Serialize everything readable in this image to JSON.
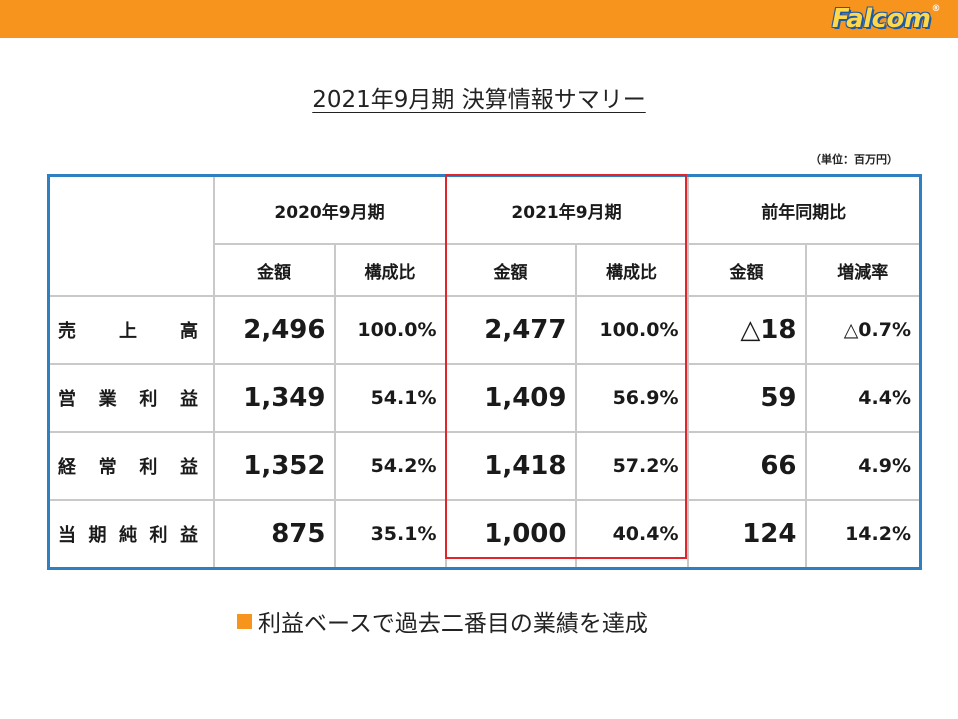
{
  "brand": {
    "logo_text": "Falcom",
    "logo_mark": "®"
  },
  "title": "2021年9月期 決算情報サマリー",
  "unit": "（単位：百万円）",
  "table": {
    "groups": [
      "2020年9月期",
      "2021年9月期",
      "前年同期比"
    ],
    "subheaders": [
      "金額",
      "構成比",
      "金額",
      "構成比",
      "金額",
      "増減率"
    ],
    "rows": [
      {
        "label": [
          "売",
          "上",
          "高"
        ],
        "cells": [
          "2,496",
          "100.0%",
          "2,477",
          "100.0%",
          "△18",
          "△0.7%"
        ]
      },
      {
        "label": [
          "営",
          "業",
          "利",
          "益"
        ],
        "cells": [
          "1,349",
          "54.1%",
          "1,409",
          "56.9%",
          "59",
          "4.4%"
        ]
      },
      {
        "label": [
          "経",
          "常",
          "利",
          "益"
        ],
        "cells": [
          "1,352",
          "54.2%",
          "1,418",
          "57.2%",
          "66",
          "4.9%"
        ]
      },
      {
        "label": [
          "当",
          "期",
          "純",
          "利",
          "益"
        ],
        "cells": [
          "875",
          "35.1%",
          "1,000",
          "40.4%",
          "124",
          "14.2%"
        ]
      }
    ]
  },
  "note": "利益ベースで過去二番目の業績を達成",
  "colors": {
    "accent_orange": "#f7941d",
    "table_border_blue": "#2f7fc1",
    "highlight_red": "#e0262b"
  }
}
